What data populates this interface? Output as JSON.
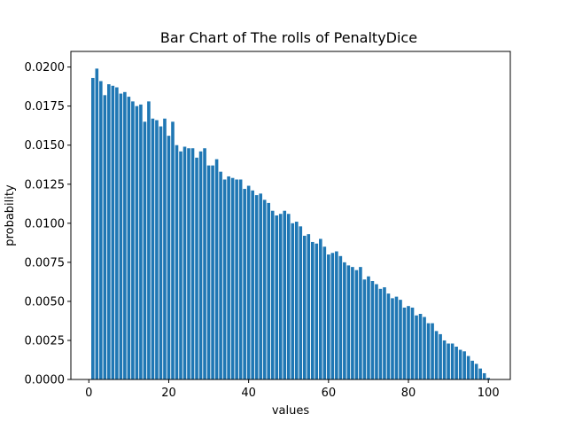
{
  "chart_data": {
    "type": "bar",
    "title": "Bar Chart of The rolls of PenaltyDice",
    "xlabel": "values",
    "ylabel": "probability",
    "xlim": [
      -4.5,
      105.5
    ],
    "ylim": [
      0,
      0.021
    ],
    "x_ticks": [
      0,
      20,
      40,
      60,
      80,
      100
    ],
    "x_tick_labels": [
      "0",
      "20",
      "40",
      "60",
      "80",
      "100"
    ],
    "y_ticks": [
      0,
      0.0025,
      0.005,
      0.0075,
      0.01,
      0.0125,
      0.015,
      0.0175,
      0.02
    ],
    "y_tick_labels": [
      "0.0000",
      "0.0025",
      "0.0050",
      "0.0075",
      "0.0100",
      "0.0125",
      "0.0150",
      "0.0175",
      "0.0200"
    ],
    "bar_color": "#1f77b4",
    "x": [
      1,
      2,
      3,
      4,
      5,
      6,
      7,
      8,
      9,
      10,
      11,
      12,
      13,
      14,
      15,
      16,
      17,
      18,
      19,
      20,
      21,
      22,
      23,
      24,
      25,
      26,
      27,
      28,
      29,
      30,
      31,
      32,
      33,
      34,
      35,
      36,
      37,
      38,
      39,
      40,
      41,
      42,
      43,
      44,
      45,
      46,
      47,
      48,
      49,
      50,
      51,
      52,
      53,
      54,
      55,
      56,
      57,
      58,
      59,
      60,
      61,
      62,
      63,
      64,
      65,
      66,
      67,
      68,
      69,
      70,
      71,
      72,
      73,
      74,
      75,
      76,
      77,
      78,
      79,
      80,
      81,
      82,
      83,
      84,
      85,
      86,
      87,
      88,
      89,
      90,
      91,
      92,
      93,
      94,
      95,
      96,
      97,
      98,
      99,
      100
    ],
    "values": [
      0.0193,
      0.0199,
      0.0191,
      0.0182,
      0.0189,
      0.0188,
      0.0187,
      0.0183,
      0.0184,
      0.0181,
      0.0178,
      0.0175,
      0.0176,
      0.0165,
      0.0178,
      0.0167,
      0.0166,
      0.0162,
      0.0167,
      0.0156,
      0.0165,
      0.015,
      0.0146,
      0.0149,
      0.0148,
      0.0148,
      0.0142,
      0.0146,
      0.0148,
      0.0137,
      0.0137,
      0.0141,
      0.0133,
      0.0128,
      0.013,
      0.0129,
      0.0128,
      0.0128,
      0.0122,
      0.0124,
      0.0121,
      0.0118,
      0.0119,
      0.0115,
      0.0113,
      0.0108,
      0.0105,
      0.0106,
      0.0108,
      0.0106,
      0.01,
      0.0101,
      0.0098,
      0.0092,
      0.0093,
      0.0088,
      0.0087,
      0.009,
      0.0085,
      0.008,
      0.0081,
      0.0082,
      0.0079,
      0.0075,
      0.0073,
      0.0072,
      0.007,
      0.0072,
      0.0064,
      0.0066,
      0.0063,
      0.0061,
      0.0058,
      0.0059,
      0.0055,
      0.0052,
      0.0053,
      0.0051,
      0.0046,
      0.0047,
      0.0046,
      0.0041,
      0.0042,
      0.004,
      0.0036,
      0.0036,
      0.0031,
      0.0029,
      0.0025,
      0.0023,
      0.0023,
      0.0021,
      0.0019,
      0.0018,
      0.0015,
      0.0012,
      0.001,
      0.0007,
      0.0004,
      0.0001
    ]
  }
}
